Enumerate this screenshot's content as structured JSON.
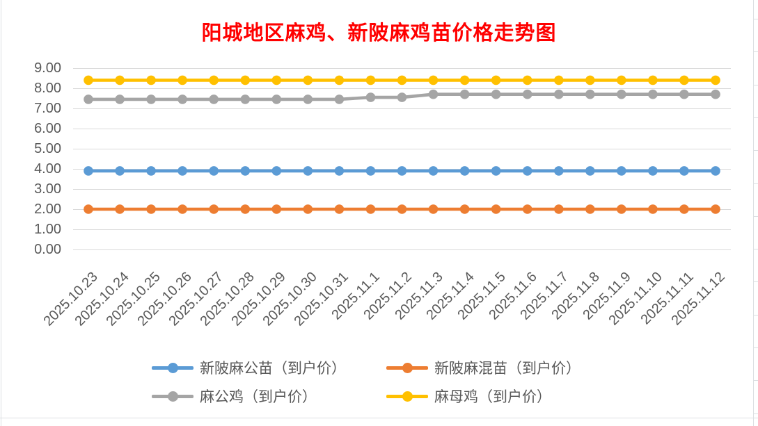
{
  "title": {
    "text": "阳城地区麻鸡、新陂麻鸡苗价格走势图",
    "color": "#FF0000"
  },
  "colors": {
    "axis_text": "#595959",
    "gridline": "#d9d9d9",
    "background": "#ffffff"
  },
  "y_axis": {
    "ticks": [
      "0.00",
      "1.00",
      "2.00",
      "3.00",
      "4.00",
      "5.00",
      "6.00",
      "7.00",
      "8.00",
      "9.00"
    ]
  },
  "chart_data": {
    "type": "line",
    "title": "阳城地区麻鸡、新陂麻鸡苗价格走势图",
    "xlabel": "",
    "ylabel": "",
    "ylim": [
      0,
      9
    ],
    "ytick_step": 1,
    "grid": true,
    "legend_position": "bottom",
    "x": [
      "2025.10.23",
      "2025.10.24",
      "2025.10.25",
      "2025.10.26",
      "2025.10.27",
      "2025.10.28",
      "2025.10.29",
      "2025.10.30",
      "2025.10.31",
      "2025.11.1",
      "2025.11.2",
      "2025.11.3",
      "2025.11.4",
      "2025.11.5",
      "2025.11.6",
      "2025.11.7",
      "2025.11.8",
      "2025.11.9",
      "2025.11.10",
      "2025.11.11",
      "2025.11.12"
    ],
    "series": [
      {
        "name": "新陂麻公苗（到户价）",
        "color": "#5B9BD5",
        "values": [
          3.9,
          3.9,
          3.9,
          3.9,
          3.9,
          3.9,
          3.9,
          3.9,
          3.9,
          3.9,
          3.9,
          3.9,
          3.9,
          3.9,
          3.9,
          3.9,
          3.9,
          3.9,
          3.9,
          3.9,
          3.9
        ]
      },
      {
        "name": "新陂麻混苗（到户价）",
        "color": "#ED7D31",
        "values": [
          2.0,
          2.0,
          2.0,
          2.0,
          2.0,
          2.0,
          2.0,
          2.0,
          2.0,
          2.0,
          2.0,
          2.0,
          2.0,
          2.0,
          2.0,
          2.0,
          2.0,
          2.0,
          2.0,
          2.0,
          2.0
        ]
      },
      {
        "name": "麻公鸡（到户价）",
        "color": "#A5A5A5",
        "values": [
          7.45,
          7.45,
          7.45,
          7.45,
          7.45,
          7.45,
          7.45,
          7.45,
          7.45,
          7.55,
          7.55,
          7.7,
          7.7,
          7.7,
          7.7,
          7.7,
          7.7,
          7.7,
          7.7,
          7.7,
          7.7
        ]
      },
      {
        "name": "麻母鸡（到户价）",
        "color": "#FFC000",
        "values": [
          8.4,
          8.4,
          8.4,
          8.4,
          8.4,
          8.4,
          8.4,
          8.4,
          8.4,
          8.4,
          8.4,
          8.4,
          8.4,
          8.4,
          8.4,
          8.4,
          8.4,
          8.4,
          8.4,
          8.4,
          8.4
        ]
      }
    ]
  }
}
